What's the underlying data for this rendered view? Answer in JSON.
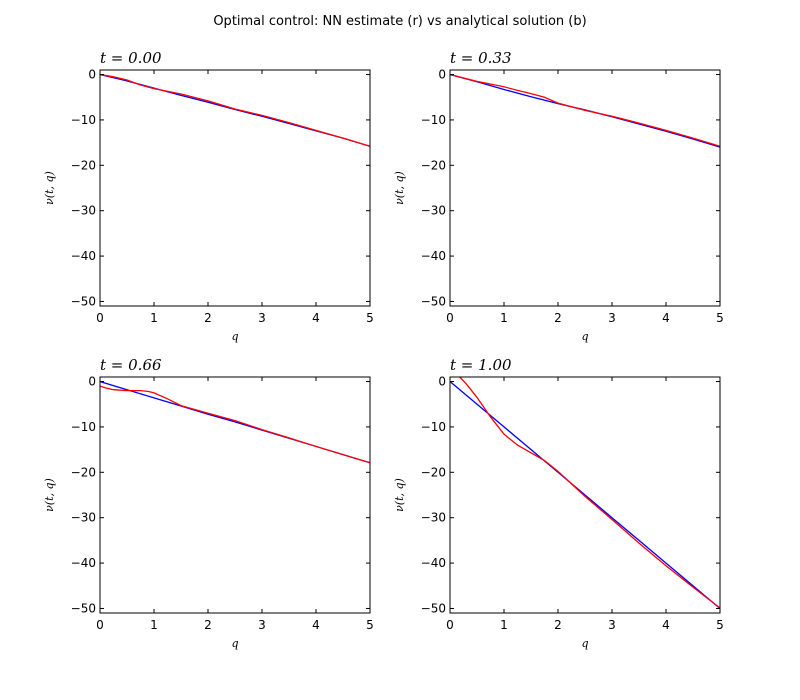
{
  "figure": {
    "title": "Optimal control: NN estimate (r) vs analytical solution (b)"
  },
  "chart_data": [
    {
      "type": "line",
      "title": "t = 0.00",
      "xlabel": "q",
      "ylabel": "ν(t, q)",
      "xlim": [
        0,
        5
      ],
      "ylim": [
        -51,
        1
      ],
      "xticks": [
        "0",
        "1",
        "2",
        "3",
        "4",
        "5"
      ],
      "yticks": [
        "0",
        "−10",
        "−20",
        "−30",
        "−40",
        "−50"
      ],
      "grid": false,
      "series": [
        {
          "color": "#0000ff",
          "x": [
            0,
            0.5,
            1,
            1.5,
            2,
            2.5,
            3,
            3.5,
            4,
            4.5,
            5
          ],
          "y": [
            0,
            -1.4,
            -3.0,
            -4.6,
            -6.1,
            -7.7,
            -9.2,
            -10.8,
            -12.4,
            -14.0,
            -15.8
          ]
        },
        {
          "color": "#ff0000",
          "x": [
            0,
            0.25,
            0.5,
            0.75,
            1,
            1.5,
            2,
            2.5,
            3,
            3.5,
            4,
            4.5,
            5
          ],
          "y": [
            0,
            -0.5,
            -1.2,
            -2.3,
            -3.1,
            -4.3,
            -5.8,
            -7.6,
            -9.0,
            -10.6,
            -12.3,
            -14.0,
            -15.8
          ]
        }
      ]
    },
    {
      "type": "line",
      "title": "t = 0.33",
      "xlabel": "q",
      "ylabel": "ν(t, q)",
      "xlim": [
        0,
        5
      ],
      "ylim": [
        -51,
        1
      ],
      "xticks": [
        "0",
        "1",
        "2",
        "3",
        "4",
        "5"
      ],
      "yticks": [
        "0",
        "−10",
        "−20",
        "−30",
        "−40",
        "−50"
      ],
      "grid": false,
      "series": [
        {
          "color": "#0000ff",
          "x": [
            0,
            0.5,
            1,
            1.5,
            2,
            2.5,
            3,
            3.5,
            4,
            4.5,
            5
          ],
          "y": [
            0,
            -1.6,
            -3.3,
            -4.9,
            -6.4,
            -7.8,
            -9.3,
            -10.9,
            -12.5,
            -14.2,
            -16.0
          ]
        },
        {
          "color": "#ff0000",
          "x": [
            0,
            0.5,
            1,
            1.25,
            1.5,
            1.75,
            2,
            2.5,
            3,
            3.5,
            4,
            4.5,
            5
          ],
          "y": [
            0,
            -1.5,
            -2.7,
            -3.5,
            -4.2,
            -5.0,
            -6.3,
            -7.9,
            -9.2,
            -10.7,
            -12.3,
            -14.0,
            -15.8
          ]
        }
      ]
    },
    {
      "type": "line",
      "title": "t = 0.66",
      "xlabel": "q",
      "ylabel": "ν(t, q)",
      "xlim": [
        0,
        5
      ],
      "ylim": [
        -51,
        1
      ],
      "xticks": [
        "0",
        "1",
        "2",
        "3",
        "4",
        "5"
      ],
      "yticks": [
        "0",
        "−10",
        "−20",
        "−30",
        "−40",
        "−50"
      ],
      "grid": false,
      "series": [
        {
          "color": "#0000ff",
          "x": [
            0,
            0.5,
            1,
            1.5,
            2,
            2.5,
            3,
            3.5,
            4,
            4.5,
            5
          ],
          "y": [
            0,
            -1.8,
            -3.6,
            -5.4,
            -7.2,
            -8.9,
            -10.7,
            -12.5,
            -14.3,
            -16.1,
            -17.9
          ]
        },
        {
          "color": "#ff0000",
          "x": [
            0,
            0.1,
            0.25,
            0.5,
            0.75,
            0.9,
            1,
            1.25,
            1.5,
            2,
            2.5,
            3,
            3.5,
            4,
            4.5,
            5
          ],
          "y": [
            -1.0,
            -1.4,
            -1.8,
            -2.0,
            -2.0,
            -2.2,
            -2.5,
            -3.8,
            -5.3,
            -7.0,
            -8.6,
            -10.6,
            -12.4,
            -14.3,
            -16.1,
            -17.9
          ]
        }
      ]
    },
    {
      "type": "line",
      "title": "t = 1.00",
      "xlabel": "q",
      "ylabel": "ν(t, q)",
      "xlim": [
        0,
        5
      ],
      "ylim": [
        -51,
        1
      ],
      "xticks": [
        "0",
        "1",
        "2",
        "3",
        "4",
        "5"
      ],
      "yticks": [
        "0",
        "−10",
        "−20",
        "−30",
        "−40",
        "−50"
      ],
      "grid": false,
      "series": [
        {
          "color": "#0000ff",
          "x": [
            0,
            1,
            2,
            3,
            4,
            5
          ],
          "y": [
            0,
            -10,
            -20,
            -30,
            -40,
            -50
          ]
        },
        {
          "color": "#ff0000",
          "x": [
            0.18,
            0.3,
            0.5,
            0.75,
            1,
            1.25,
            1.5,
            1.75,
            2,
            2.5,
            3,
            3.5,
            4,
            4.5,
            5
          ],
          "y": [
            1,
            -0.5,
            -3.5,
            -7.8,
            -11.6,
            -14.0,
            -15.7,
            -17.4,
            -19.8,
            -25.3,
            -30.4,
            -35.6,
            -40.6,
            -45.3,
            -49.9
          ]
        }
      ]
    }
  ]
}
